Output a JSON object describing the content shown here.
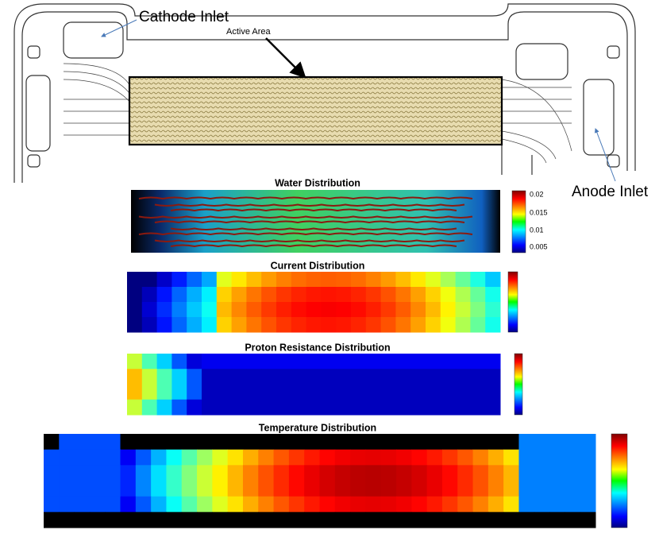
{
  "labels": {
    "cathode_inlet": "Cathode Inlet",
    "active_area": "Active Area",
    "anode_inlet": "Anode Inlet"
  },
  "panels": [
    {
      "title": "Water Distribution",
      "colorbar_labels": [
        "0.02",
        "0.015",
        "0.01",
        "0.005"
      ]
    },
    {
      "title": "Current Distribution"
    },
    {
      "title": "Proton Resistance Distribution"
    },
    {
      "title": "Temperature Distribution"
    }
  ]
}
